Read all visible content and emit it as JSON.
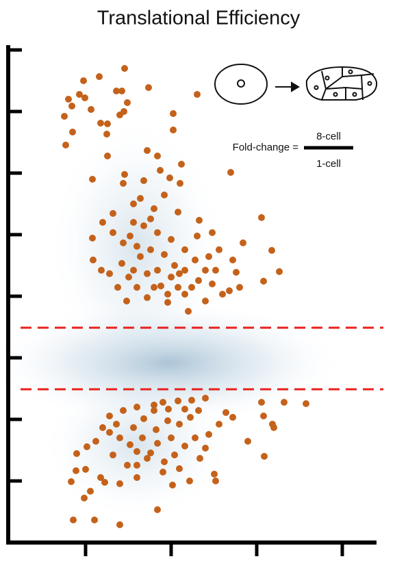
{
  "chart_data": {
    "type": "scatter",
    "title": "Translational Efficiency",
    "annotation": {
      "prefix": "Fold-change =",
      "numerator": "8-cell",
      "denominator": "1-cell"
    },
    "xlim": [
      12,
      550
    ],
    "xticks": [
      125,
      250,
      375,
      500
    ],
    "ylim": [
      0,
      725
    ],
    "yticks": [
      90,
      180,
      270,
      360,
      450,
      540,
      630,
      720
    ],
    "hlines": [
      {
        "value": 314,
        "color": "#e8201c"
      },
      {
        "value": 224,
        "color": "#e8201c"
      }
    ],
    "x": [
      182,
      145,
      122,
      100,
      116,
      105,
      124,
      170,
      178,
      133,
      186,
      181,
      175,
      94,
      147,
      157,
      106,
      96,
      156,
      217,
      288,
      253,
      253,
      215,
      157,
      230,
      265,
      135,
      182,
      210,
      234,
      180,
      248,
      263,
      337,
      382,
      397,
      408,
      385,
      355,
      291,
      205,
      240,
      195,
      225,
      260,
      288,
      310,
      320,
      340,
      345,
      350,
      335,
      300,
      275,
      245,
      215,
      185,
      172,
      160,
      148,
      136,
      135,
      150,
      165,
      180,
      200,
      220,
      240,
      255,
      270,
      290,
      310,
      325,
      260,
      235,
      215,
      195,
      178,
      210,
      230,
      250,
      270,
      285,
      300,
      230,
      250,
      270,
      245,
      225,
      200,
      205,
      188,
      262,
      280,
      305,
      315,
      195,
      220,
      165,
      190,
      180,
      160,
      200,
      225,
      238,
      260,
      280,
      300,
      330,
      382,
      415,
      447,
      385,
      398,
      400,
      362,
      386,
      340,
      320,
      305,
      285,
      270,
      255,
      240,
      220,
      200,
      190,
      175,
      160,
      150,
      140,
      127,
      112,
      125,
      104,
      111,
      147,
      132,
      123,
      153,
      175,
      200,
      215,
      238,
      252,
      277,
      313,
      315,
      230,
      107,
      138,
      175,
      186,
      208,
      228,
      245,
      262,
      278,
      250,
      230,
      210,
      195,
      170,
      262,
      292,
      300,
      165,
      200,
      225,
      246,
      270,
      290
    ],
    "series": [
      {
        "color": "#c4621b",
        "values": [
          693,
          681,
          675,
          648,
          655,
          638,
          650,
          660,
          660,
          633,
          643,
          630,
          625,
          623,
          613,
          612,
          600,
          581,
          597,
          665,
          655,
          627,
          603,
          573,
          565,
          565,
          553,
          531,
          538,
          529,
          544,
          525,
          533,
          525,
          541,
          475,
          427,
          396,
          382,
          438,
          471,
          503,
          508,
          495,
          488,
          483,
          448,
          453,
          428,
          413,
          395,
          373,
          368,
          353,
          338,
          351,
          358,
          353,
          373,
          393,
          398,
          413,
          445,
          468,
          453,
          438,
          433,
          428,
          421,
          405,
          398,
          383,
          378,
          363,
          373,
          375,
          393,
          398,
          408,
          463,
          453,
          443,
          428,
          413,
          398,
          398,
          388,
          363,
          363,
          373,
          373,
          418,
          388,
          393,
          373,
          418,
          398,
          468,
          473,
          481,
          448,
          193,
          185,
          198,
          201,
          205,
          207,
          208,
          211,
          190,
          205,
          205,
          203,
          185,
          173,
          168,
          148,
          126,
          183,
          173,
          158,
          153,
          141,
          128,
          118,
          131,
          133,
          143,
          153,
          161,
          168,
          148,
          140,
          130,
          107,
          89,
          105,
          95,
          75,
          65,
          88,
          86,
          95,
          123,
          103,
          84,
          90,
          100,
          90,
          48,
          33,
          33,
          26,
          113,
          153,
          165,
          178,
          173,
          183,
          153,
          145,
          181,
          168,
          173,
          108,
          123,
          138,
          128,
          113,
          193,
          195,
          195,
          193
        ]
      }
    ]
  }
}
